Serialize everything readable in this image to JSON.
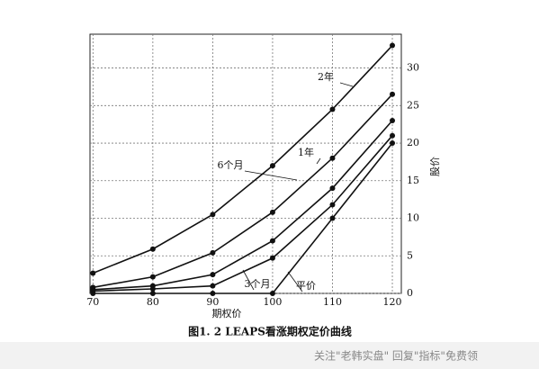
{
  "chart_data": {
    "type": "line",
    "title": "图1. 2   LEAPS看涨期权定价曲线",
    "x_label": "期权价",
    "y_label": "股价",
    "x": [
      70,
      80,
      90,
      100,
      110,
      120
    ],
    "series": [
      {
        "name": "2年",
        "color": "#111111",
        "values": [
          2.7,
          5.9,
          10.5,
          17.0,
          24.5,
          33.0
        ]
      },
      {
        "name": "1年",
        "color": "#111111",
        "values": [
          0.8,
          2.2,
          5.4,
          10.8,
          18.0,
          26.5
        ]
      },
      {
        "name": "6个月",
        "color": "#111111",
        "values": [
          0.5,
          1.0,
          2.5,
          7.0,
          14.0,
          23.0
        ]
      },
      {
        "name": "3个月",
        "color": "#111111",
        "values": [
          0.3,
          0.6,
          1.0,
          4.7,
          11.8,
          21.0
        ]
      },
      {
        "name": "平价",
        "color": "#111111",
        "values": [
          0,
          0,
          0,
          0,
          10,
          20
        ]
      }
    ],
    "xlim": [
      69.5,
      121.5
    ],
    "ylim": [
      0,
      34.5
    ],
    "xticks": [
      70,
      80,
      90,
      100,
      110,
      120
    ],
    "yticks": [
      0,
      5,
      10,
      15,
      20,
      25,
      30
    ],
    "grid": true
  },
  "watermark": "关注\"老韩实盘\" 回复\"指标\"免费领"
}
